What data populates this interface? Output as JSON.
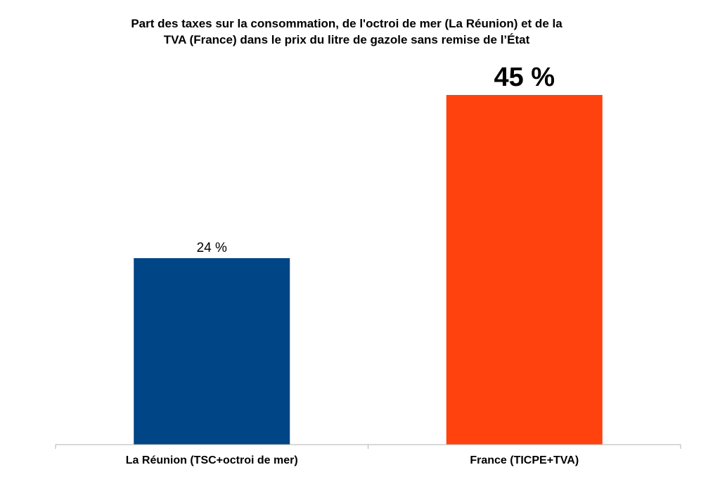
{
  "chart_data": {
    "type": "bar",
    "title_lines": [
      "Part des taxes sur la consommation, de l'octroi de mer (La Réunion) et de la",
      "TVA (France) dans le prix du litre de gazole sans remise de l’État"
    ],
    "categories": [
      "La Réunion (TSC+octroi de mer)",
      "France (TICPE+TVA)"
    ],
    "values": [
      24,
      45
    ],
    "data_labels": [
      "24 %",
      "45 %"
    ],
    "bar_colors": [
      "#004586",
      "#ff420e"
    ],
    "ylim": [
      0,
      45
    ],
    "grid": false,
    "legend": "none"
  }
}
